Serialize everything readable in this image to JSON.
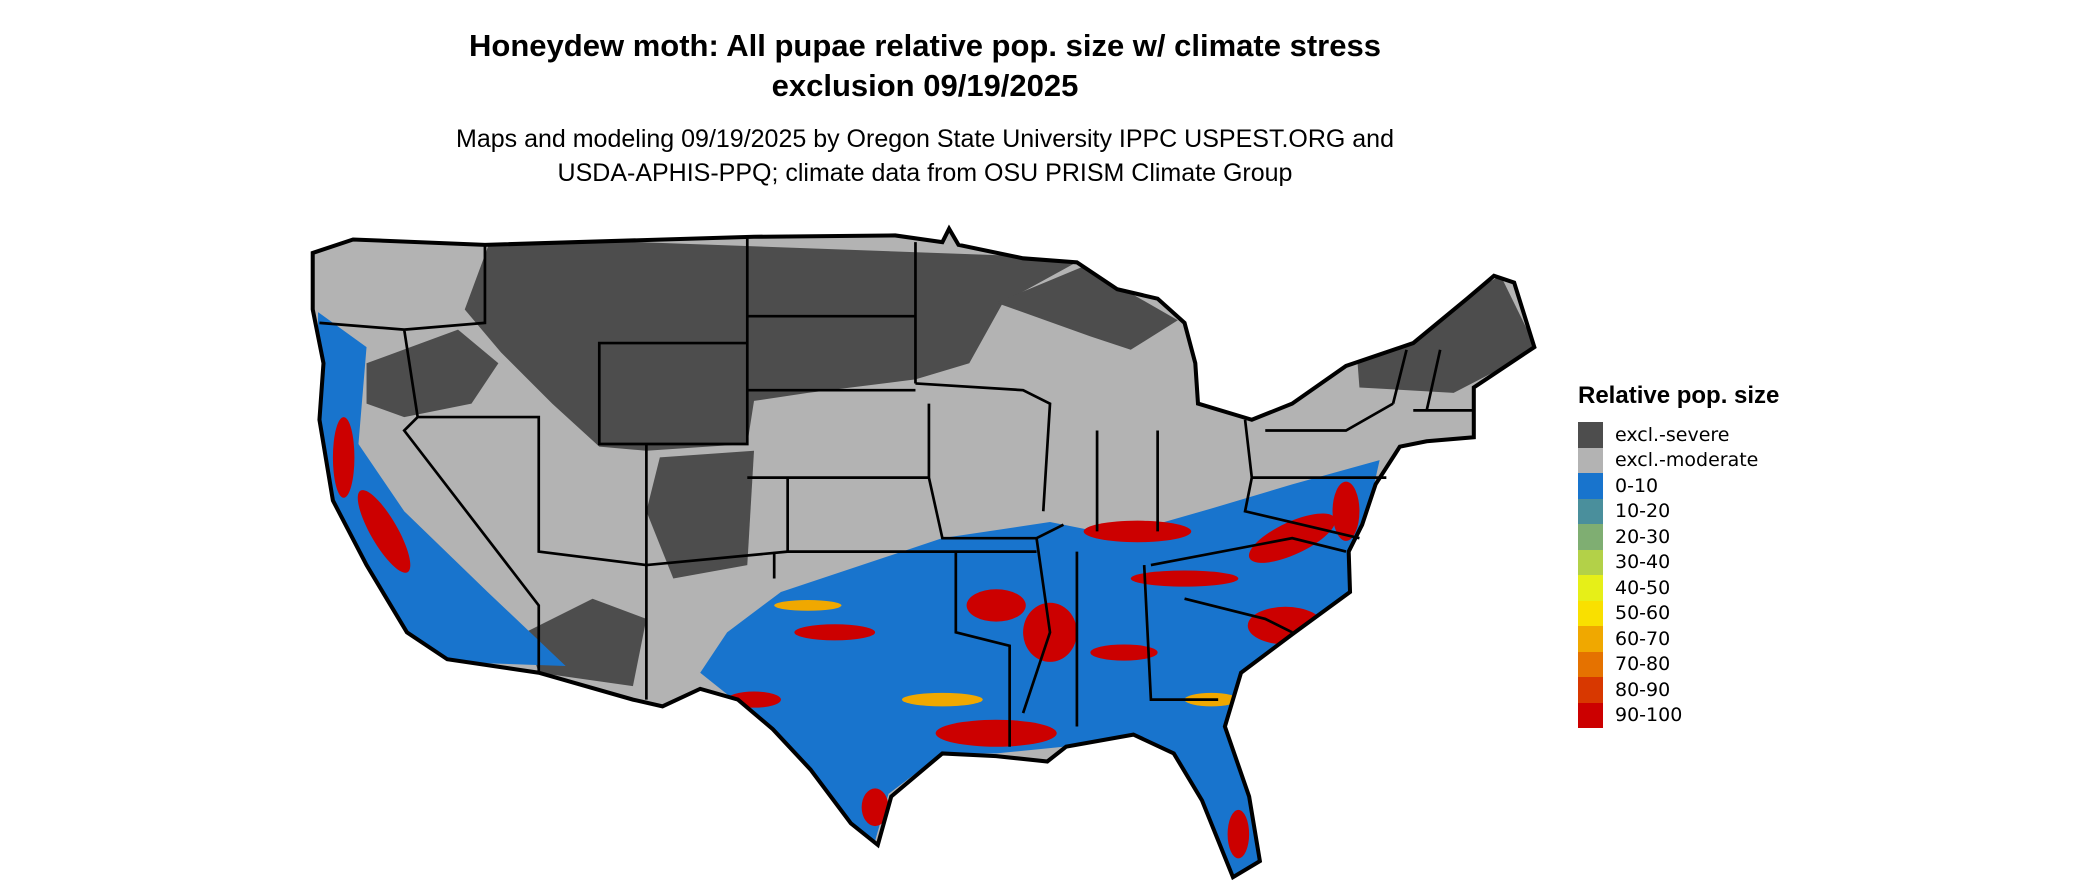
{
  "title": {
    "line1": "Honeydew moth: All pupae relative pop. size w/ climate stress",
    "line2": "exclusion 09/19/2025"
  },
  "subtitle": {
    "line1": "Maps and modeling 09/19/2025 by Oregon State University IPPC USPEST.ORG and",
    "line2": "USDA-APHIS-PPQ; climate data from OSU PRISM Climate Group"
  },
  "legend": {
    "title": "Relative pop. size",
    "items": [
      {
        "label": "excl.-severe",
        "color": "#4d4d4d"
      },
      {
        "label": "excl.-moderate",
        "color": "#b3b3b3"
      },
      {
        "label": "0-10",
        "color": "#1874cd"
      },
      {
        "label": "10-20",
        "color": "#4a8f9c"
      },
      {
        "label": "20-30",
        "color": "#7fae72"
      },
      {
        "label": "30-40",
        "color": "#b3d148"
      },
      {
        "label": "40-50",
        "color": "#e6ef18"
      },
      {
        "label": "50-60",
        "color": "#f9e000"
      },
      {
        "label": "60-70",
        "color": "#f0a800"
      },
      {
        "label": "70-80",
        "color": "#e57200"
      },
      {
        "label": "80-90",
        "color": "#d83800"
      },
      {
        "label": "90-100",
        "color": "#cc0000"
      }
    ]
  }
}
